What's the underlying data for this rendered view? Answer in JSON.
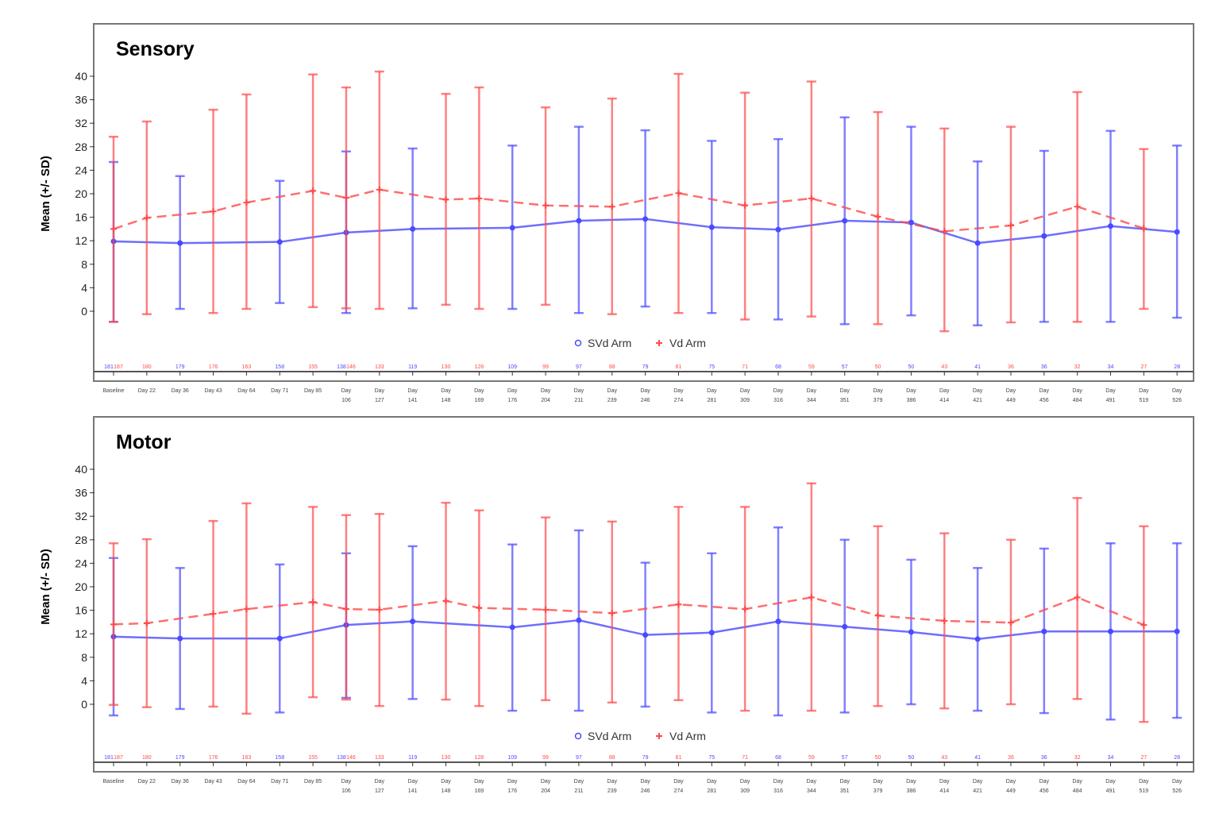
{
  "chart_data": [
    {
      "type": "line",
      "title": "Sensory",
      "ylabel": "Mean (+/- SD)",
      "ylim": [
        -4,
        44
      ],
      "yticks": [
        0,
        4,
        8,
        12,
        16,
        20,
        24,
        28,
        32,
        36,
        40
      ],
      "grid": false,
      "legend": "bottom-center",
      "categories": [
        "Baseline",
        "Day 22",
        "Day 36",
        "Day 43",
        "Day 64",
        "Day 71",
        "Day 85",
        "Day 106",
        "Day 127",
        "Day 141",
        "Day 148",
        "Day 169",
        "Day 176",
        "Day 204",
        "Day 211",
        "Day 239",
        "Day 246",
        "Day 274",
        "Day 281",
        "Day 309",
        "Day 316",
        "Day 344",
        "Day 351",
        "Day 379",
        "Day 386",
        "Day 414",
        "Day 421",
        "Day 449",
        "Day 456",
        "Day 484",
        "Day 491",
        "Day 519",
        "Day 526"
      ],
      "series": [
        {
          "name": "SVd Arm",
          "color": "#4a4aff",
          "marker": "circle",
          "dash": false,
          "x": [
            "Baseline",
            "Day 36",
            "Day 71",
            "Day 106",
            "Day 141",
            "Day 176",
            "Day 211",
            "Day 246",
            "Day 281",
            "Day 316",
            "Day 351",
            "Day 386",
            "Day 421",
            "Day 456",
            "Day 491",
            "Day 526"
          ],
          "mean": [
            11.9,
            11.6,
            11.8,
            13.4,
            14,
            14.2,
            15.4,
            15.7,
            14.3,
            13.9,
            15.4,
            15.1,
            11.6,
            12.8,
            14.5,
            13.5
          ],
          "upper": [
            25.4,
            23,
            22.2,
            27.2,
            27.7,
            28.2,
            31.4,
            30.8,
            29,
            29.3,
            33,
            31.4,
            25.5,
            27.3,
            30.7,
            28.2
          ],
          "lower": [
            -1.8,
            0.4,
            1.4,
            -0.3,
            0.5,
            0.4,
            -0.3,
            0.8,
            -0.3,
            -1.4,
            -2.2,
            -0.7,
            -2.4,
            -1.8,
            -1.8,
            -1.1
          ],
          "n": [
            "181",
            "179",
            "158",
            "138",
            "119",
            "109",
            "97",
            "79",
            "75",
            "68",
            "57",
            "50",
            "41",
            "36",
            "34",
            "28"
          ]
        },
        {
          "name": "Vd Arm",
          "color": "#ff4a4a",
          "marker": "plus",
          "dash": true,
          "x": [
            "Baseline",
            "Day 22",
            "Day 43",
            "Day 64",
            "Day 85",
            "Day 106",
            "Day 127",
            "Day 148",
            "Day 169",
            "Day 204",
            "Day 239",
            "Day 274",
            "Day 309",
            "Day 344",
            "Day 379",
            "Day 414",
            "Day 449",
            "Day 484",
            "Day 519"
          ],
          "mean": [
            14,
            15.9,
            17,
            18.5,
            20.5,
            19.3,
            20.7,
            19,
            19.2,
            18,
            17.8,
            20.1,
            18,
            19.2,
            16.1,
            13.6,
            14.6,
            17.8,
            14.1
          ],
          "upper": [
            29.7,
            32.3,
            34.3,
            36.9,
            40.3,
            38.1,
            40.8,
            37,
            38.1,
            34.7,
            36.2,
            40.4,
            37.2,
            39.1,
            33.9,
            31.1,
            31.4,
            37.3,
            27.6
          ],
          "lower": [
            -1.8,
            -0.5,
            -0.3,
            0.4,
            0.7,
            0.5,
            0.4,
            1.1,
            0.4,
            1.1,
            -0.5,
            -0.3,
            -1.4,
            -0.9,
            -2.2,
            -3.4,
            -1.9,
            -1.8,
            0.4
          ],
          "n": [
            "187",
            "180",
            "176",
            "163",
            "155",
            "146",
            "133",
            "130",
            "128",
            "99",
            "88",
            "81",
            "71",
            "59",
            "50",
            "43",
            "36",
            "32",
            "27"
          ]
        }
      ]
    },
    {
      "type": "line",
      "title": "Motor",
      "ylabel": "Mean (+/- SD)",
      "ylim": [
        -4,
        44
      ],
      "yticks": [
        0,
        4,
        8,
        12,
        16,
        20,
        24,
        28,
        32,
        36,
        40
      ],
      "grid": false,
      "legend": "bottom-center",
      "categories": [
        "Baseline",
        "Day 22",
        "Day 36",
        "Day 43",
        "Day 64",
        "Day 71",
        "Day 85",
        "Day 106",
        "Day 127",
        "Day 141",
        "Day 148",
        "Day 169",
        "Day 176",
        "Day 204",
        "Day 211",
        "Day 239",
        "Day 246",
        "Day 274",
        "Day 281",
        "Day 309",
        "Day 316",
        "Day 344",
        "Day 351",
        "Day 379",
        "Day 386",
        "Day 414",
        "Day 421",
        "Day 449",
        "Day 456",
        "Day 484",
        "Day 491",
        "Day 519",
        "Day 526"
      ],
      "series": [
        {
          "name": "SVd Arm",
          "color": "#4a4aff",
          "marker": "circle",
          "dash": false,
          "x": [
            "Baseline",
            "Day 36",
            "Day 71",
            "Day 106",
            "Day 141",
            "Day 176",
            "Day 211",
            "Day 246",
            "Day 281",
            "Day 316",
            "Day 351",
            "Day 386",
            "Day 421",
            "Day 456",
            "Day 491",
            "Day 526"
          ],
          "mean": [
            11.5,
            11.2,
            11.2,
            13.5,
            14.1,
            13.1,
            14.3,
            11.8,
            12.2,
            14.1,
            13.2,
            12.3,
            11.1,
            12.4,
            12.4,
            12.4
          ],
          "upper": [
            24.9,
            23.2,
            23.8,
            25.7,
            26.9,
            27.2,
            29.6,
            24.1,
            25.7,
            30.1,
            28,
            24.6,
            23.2,
            26.5,
            27.4,
            27.4
          ],
          "lower": [
            -1.9,
            -0.8,
            -1.4,
            1.1,
            0.9,
            -1.1,
            -1.1,
            -0.4,
            -1.4,
            -1.9,
            -1.4,
            0,
            -1.1,
            -1.5,
            -2.6,
            -2.3
          ],
          "n": [
            "181",
            "179",
            "158",
            "138",
            "119",
            "109",
            "97",
            "79",
            "75",
            "68",
            "57",
            "50",
            "41",
            "36",
            "34",
            "28"
          ]
        },
        {
          "name": "Vd Arm",
          "color": "#ff4a4a",
          "marker": "plus",
          "dash": true,
          "x": [
            "Baseline",
            "Day 22",
            "Day 43",
            "Day 64",
            "Day 85",
            "Day 106",
            "Day 127",
            "Day 148",
            "Day 169",
            "Day 204",
            "Day 239",
            "Day 274",
            "Day 309",
            "Day 344",
            "Day 379",
            "Day 414",
            "Day 449",
            "Day 484",
            "Day 519"
          ],
          "mean": [
            13.6,
            13.8,
            15.4,
            16.2,
            17.4,
            16.2,
            16.1,
            17.6,
            16.4,
            16.1,
            15.5,
            17,
            16.2,
            18.2,
            15.1,
            14.2,
            13.9,
            18.2,
            13.5
          ],
          "upper": [
            27.4,
            28.1,
            31.2,
            34.2,
            33.6,
            32.2,
            32.4,
            34.3,
            33,
            31.8,
            31.1,
            33.6,
            33.6,
            37.6,
            30.3,
            29.1,
            28,
            35.1,
            30.3
          ],
          "lower": [
            -0.1,
            -0.5,
            -0.4,
            -1.6,
            1.2,
            0.8,
            -0.3,
            0.8,
            -0.3,
            0.7,
            0.3,
            0.7,
            -1.1,
            -1.1,
            -0.3,
            -0.7,
            0,
            0.9,
            -3
          ],
          "n": [
            "187",
            "180",
            "176",
            "163",
            "155",
            "146",
            "133",
            "130",
            "128",
            "99",
            "88",
            "81",
            "71",
            "59",
            "50",
            "43",
            "36",
            "32",
            "27"
          ]
        }
      ]
    }
  ]
}
